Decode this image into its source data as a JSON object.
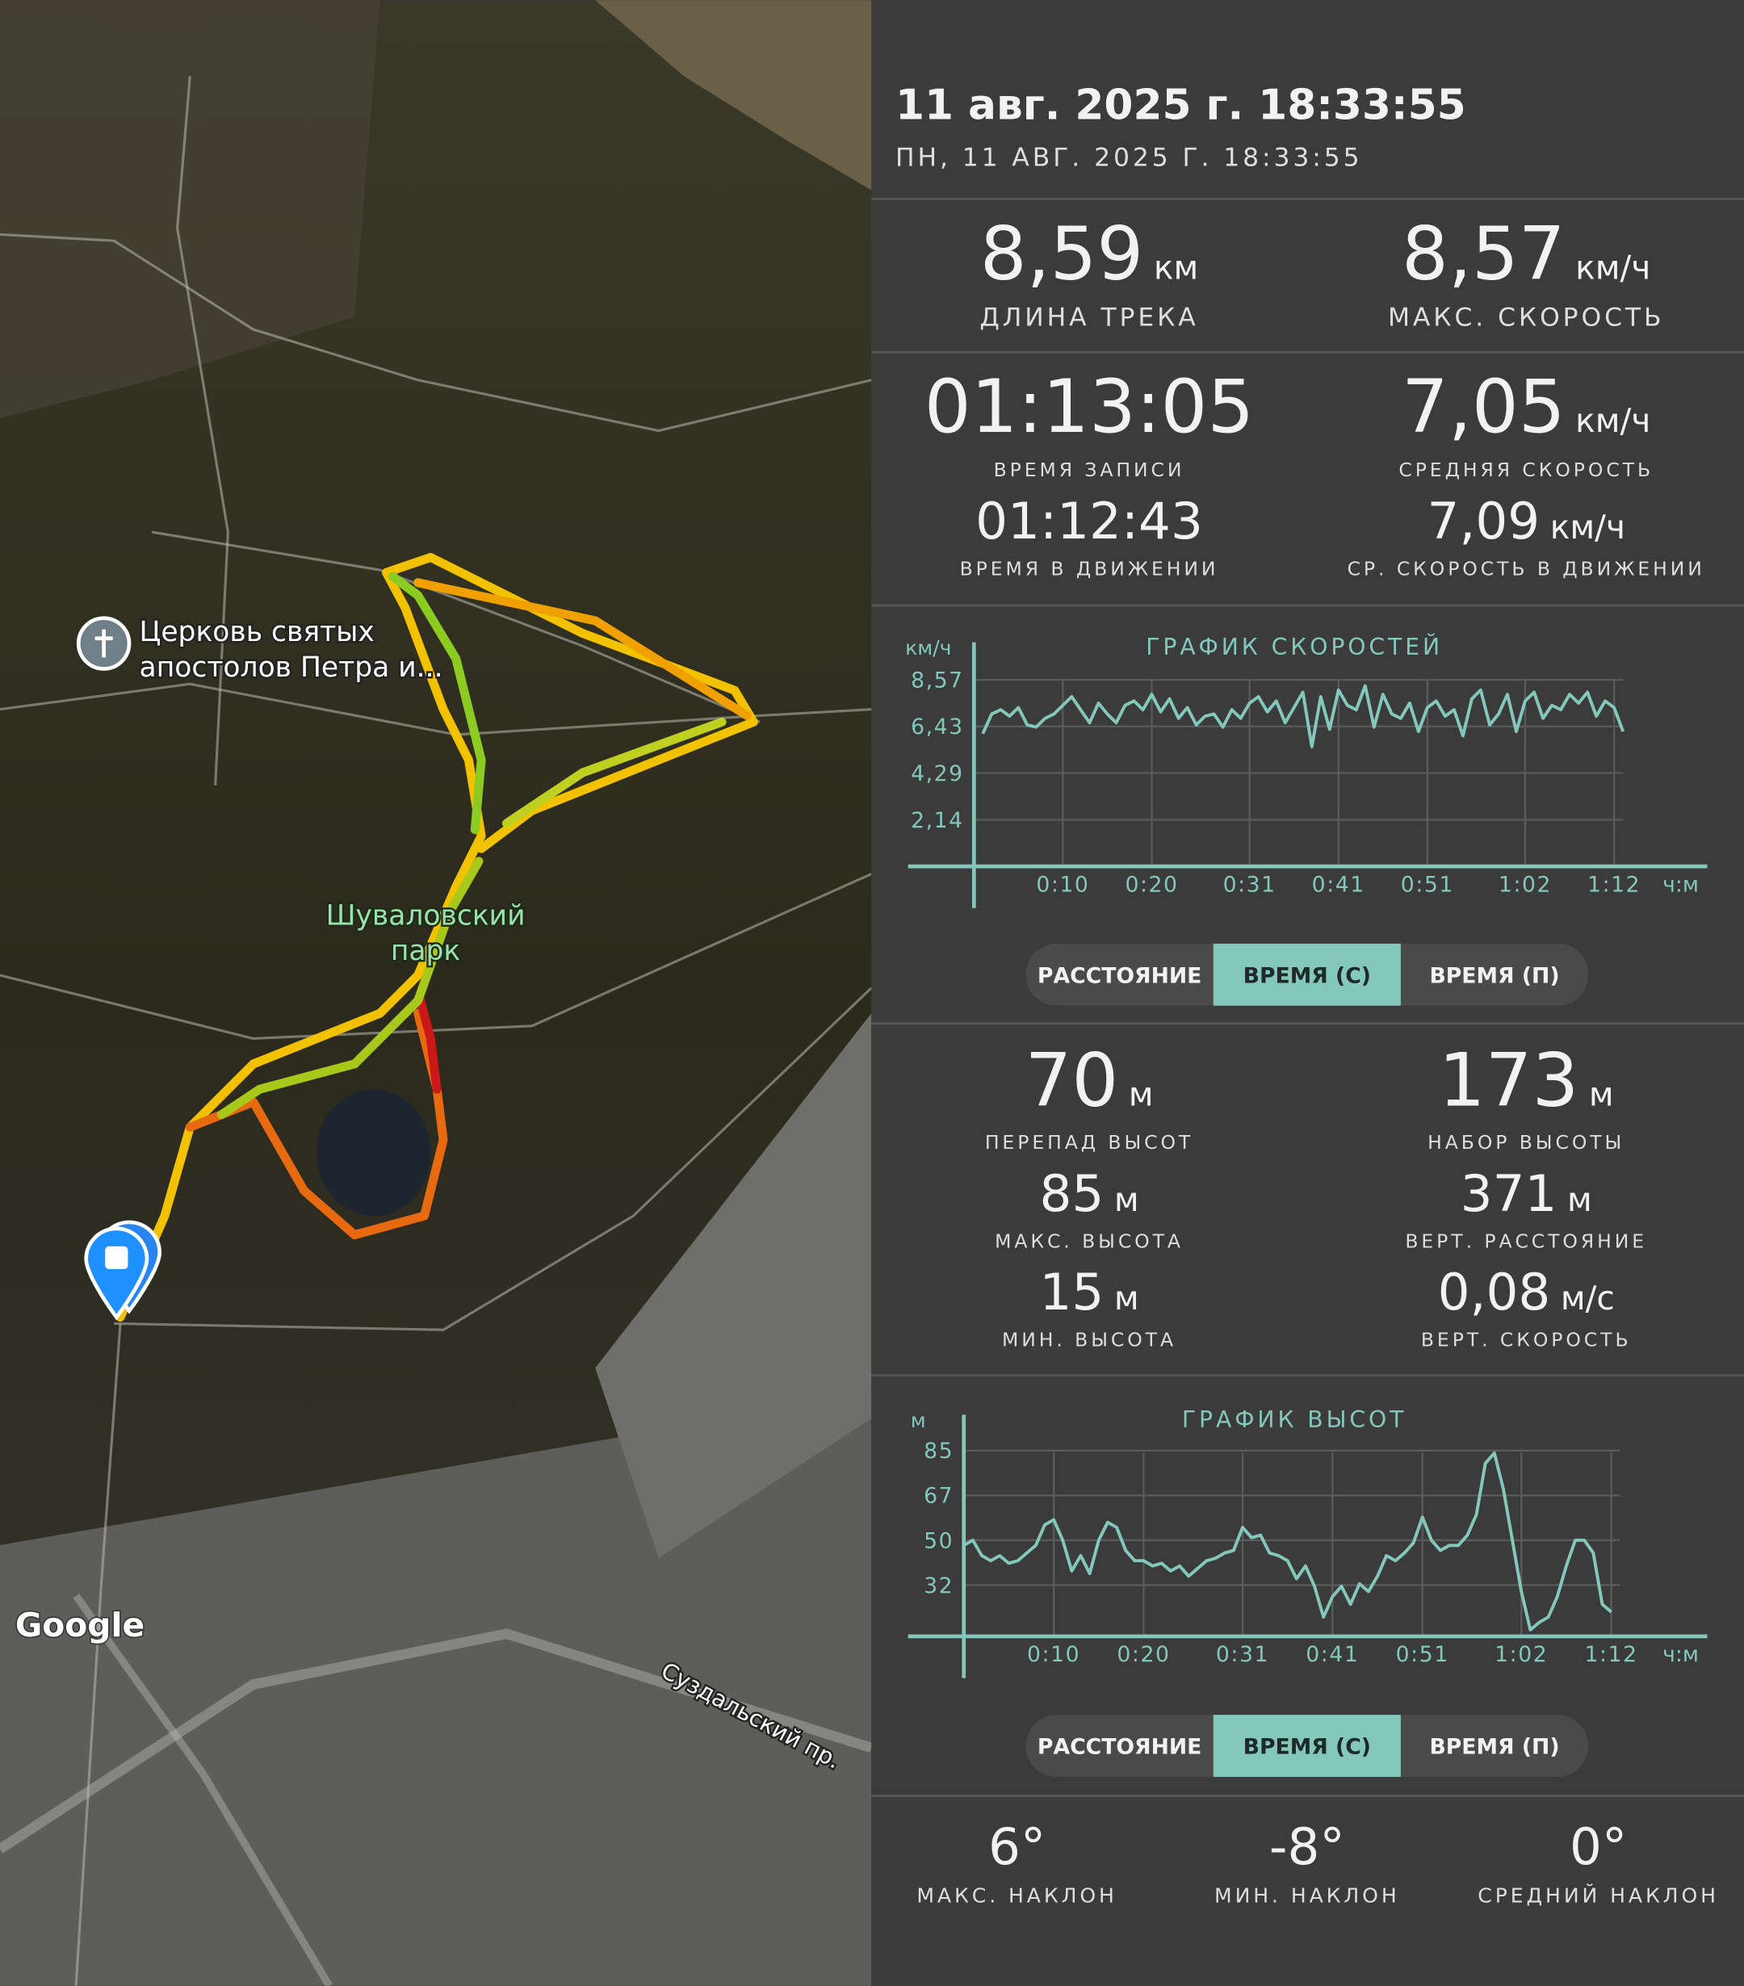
{
  "header": {
    "title": "11 авг. 2025 г. 18:33:55",
    "subtitle": "ПН, 11 АВГ. 2025 Г. 18:33:55"
  },
  "map": {
    "church": [
      "Церковь святых",
      "апостолов Петра и..."
    ],
    "park": [
      "Шуваловский",
      "парк"
    ],
    "road": "Суздальский пр.",
    "attribution": "Google"
  },
  "track_stats": [
    {
      "value": "8,59",
      "unit": "км",
      "label": "ДЛИНА ТРЕКА"
    },
    {
      "value": "8,57",
      "unit": "км/ч",
      "label": "МАКС. СКОРОСТЬ"
    },
    {
      "value": "01:13:05",
      "label": "ВРЕМЯ ЗАПИСИ"
    },
    {
      "value": "7,05",
      "unit": "км/ч",
      "label": "СРЕДНЯЯ СКОРОСТЬ"
    },
    {
      "value": "01:12:43",
      "label": "ВРЕМЯ В ДВИЖЕНИИ"
    },
    {
      "value": "7,09",
      "unit": "км/ч",
      "label": "СР. СКОРОСТЬ В ДВИЖЕНИИ"
    }
  ],
  "speed_chart": {
    "type": "line",
    "title": "ГРАФИК СКОРОСТЕЙ",
    "y_unit": "км/ч",
    "x_unit": "ч:м",
    "color": "#84c7bb",
    "xlim": [
      0,
      73
    ],
    "ylim": [
      0,
      10.3
    ],
    "xticks": [
      {
        "value": 10,
        "label": "0:10"
      },
      {
        "value": 20,
        "label": "0:20"
      },
      {
        "value": 31,
        "label": "0:31"
      },
      {
        "value": 41,
        "label": "0:41"
      },
      {
        "value": 51,
        "label": "0:51"
      },
      {
        "value": 62,
        "label": "1:02"
      },
      {
        "value": 72,
        "label": "1:12"
      }
    ],
    "yticks": [
      {
        "value": 8.57,
        "label": "8,57"
      },
      {
        "value": 6.43,
        "label": "6,43"
      },
      {
        "value": 4.29,
        "label": "4,29"
      },
      {
        "value": 2.14,
        "label": "2,14"
      }
    ],
    "x": [
      1,
      2,
      3,
      4,
      5,
      6,
      7,
      8,
      9,
      10,
      11,
      12,
      13,
      14,
      15,
      16,
      17,
      18,
      19,
      20,
      21,
      22,
      23,
      24,
      25,
      26,
      27,
      28,
      29,
      30,
      31,
      32,
      33,
      34,
      35,
      36,
      37,
      38,
      39,
      40,
      41,
      42,
      43,
      44,
      45,
      46,
      47,
      48,
      49,
      50,
      51,
      52,
      53,
      54,
      55,
      56,
      57,
      58,
      59,
      60,
      61,
      62,
      63,
      64,
      65,
      66,
      67,
      68,
      69,
      70,
      71,
      72,
      73
    ],
    "values": [
      6.1,
      7.0,
      7.2,
      6.9,
      7.3,
      6.5,
      6.4,
      6.8,
      7.0,
      7.4,
      7.8,
      7.2,
      6.6,
      7.5,
      7.0,
      6.6,
      7.4,
      7.6,
      7.2,
      7.9,
      7.1,
      7.7,
      6.8,
      7.3,
      6.5,
      6.9,
      7.0,
      6.4,
      7.2,
      6.8,
      7.5,
      7.8,
      7.1,
      7.6,
      6.6,
      7.3,
      8.0,
      5.5,
      7.8,
      6.3,
      8.1,
      7.4,
      7.2,
      8.3,
      6.4,
      7.9,
      7.0,
      6.8,
      7.5,
      6.2,
      7.3,
      7.6,
      6.9,
      7.2,
      6.0,
      7.7,
      8.1,
      6.5,
      7.0,
      7.9,
      6.2,
      7.6,
      8.0,
      6.8,
      7.4,
      7.2,
      7.9,
      7.5,
      8.0,
      6.9,
      7.6,
      7.3,
      6.2
    ],
    "buttons": [
      "РАССТОЯНИЕ",
      "ВРЕМЯ (С)",
      "ВРЕМЯ (П)"
    ],
    "selected_button": 1
  },
  "altitude_stats": [
    {
      "value": "70",
      "unit": "м",
      "label": "ПЕРЕПАД ВЫСОТ"
    },
    {
      "value": "173",
      "unit": "м",
      "label": "НАБОР ВЫСОТЫ"
    },
    {
      "value": "85",
      "unit": "м",
      "label": "МАКС. ВЫСОТА"
    },
    {
      "value": "371",
      "unit": "м",
      "label": "ВЕРТ. РАССТОЯНИЕ"
    },
    {
      "value": "15",
      "unit": "м",
      "label": "МИН. ВЫСОТА"
    },
    {
      "value": "0,08",
      "unit": "м/с",
      "label": "ВЕРТ. СКОРОСТЬ"
    }
  ],
  "altitude_chart": {
    "type": "line",
    "title": "ГРАФИК ВЫСОТ",
    "y_unit": "м",
    "x_unit": "ч:м",
    "color": "#84c7bb",
    "xlim": [
      0,
      73
    ],
    "ylim": [
      12.5,
      99
    ],
    "xticks": [
      {
        "value": 10,
        "label": "0:10"
      },
      {
        "value": 20,
        "label": "0:20"
      },
      {
        "value": 31,
        "label": "0:31"
      },
      {
        "value": 41,
        "label": "0:41"
      },
      {
        "value": 51,
        "label": "0:51"
      },
      {
        "value": 62,
        "label": "1:02"
      },
      {
        "value": 72,
        "label": "1:12"
      }
    ],
    "yticks": [
      85,
      {
        "value": 67.5,
        "label": "67"
      },
      50,
      {
        "value": 32.5,
        "label": "32"
      }
    ],
    "x": [
      0,
      1,
      2,
      3,
      4,
      5,
      6,
      7,
      8,
      9,
      10,
      11,
      12,
      13,
      14,
      15,
      16,
      17,
      18,
      19,
      20,
      21,
      22,
      23,
      24,
      25,
      26,
      27,
      28,
      29,
      30,
      31,
      32,
      33,
      34,
      35,
      36,
      37,
      38,
      39,
      40,
      41,
      42,
      43,
      44,
      45,
      46,
      47,
      48,
      49,
      50,
      51,
      52,
      53,
      54,
      55,
      56,
      57,
      58,
      59,
      60,
      61,
      62,
      63,
      64,
      65,
      66,
      67,
      68,
      69,
      70,
      71,
      72
    ],
    "values": [
      48,
      50,
      44,
      42,
      44,
      41,
      42,
      45,
      48,
      56,
      58,
      50,
      38,
      44,
      37,
      50,
      57,
      55,
      46,
      42,
      42,
      40,
      41,
      38,
      40,
      36,
      39,
      42,
      43,
      45,
      46,
      55,
      51,
      52,
      45,
      44,
      42,
      35,
      40,
      32,
      20,
      28,
      32,
      25,
      33,
      30,
      36,
      44,
      42,
      45,
      49,
      59,
      50,
      46,
      48,
      48,
      52,
      60,
      80,
      84,
      70,
      50,
      30,
      15,
      18,
      20,
      28,
      40,
      50,
      50,
      45,
      25,
      22
    ],
    "buttons": [
      "РАССТОЯНИЕ",
      "ВРЕМЯ (С)",
      "ВРЕМЯ (П)"
    ],
    "selected_button": 1
  },
  "slope_stats": [
    {
      "value": "6°",
      "label": "МАКС. НАКЛОН"
    },
    {
      "value": "-8°",
      "label": "МИН. НАКЛОН"
    },
    {
      "value": "0°",
      "label": "СРЕДНИЙ НАКЛОН"
    }
  ]
}
